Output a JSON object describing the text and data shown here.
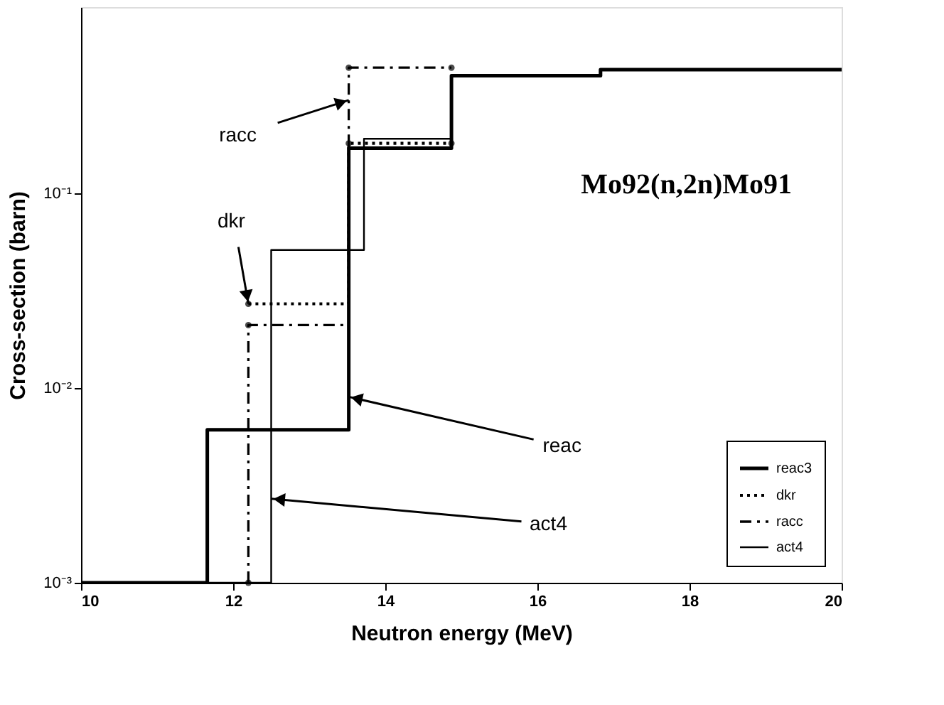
{
  "chart_data": {
    "type": "step",
    "title": "Mo92(n,2n)Mo91",
    "xlabel": "Neutron  energy  (MeV)",
    "ylabel": "Cross-section  (barn)",
    "xlim": [
      10,
      20
    ],
    "xticks": [
      10,
      12,
      14,
      16,
      18,
      20
    ],
    "ylim": [
      0.001,
      0.9
    ],
    "yticks": [
      {
        "value": 0.001,
        "label": "10⁻³"
      },
      {
        "value": 0.01,
        "label": "10⁻²"
      },
      {
        "value": 0.1,
        "label": "10⁻¹"
      }
    ],
    "log": true,
    "grid": false,
    "legend": "bottom right",
    "series": [
      {
        "name": "reac3",
        "color": "#000000",
        "line_style": "solid",
        "x": [
          10,
          11.66,
          13.52,
          14.87,
          16.83,
          20
        ],
        "values": [
          0.001,
          0.0061,
          0.17,
          0.4,
          0.43,
          0.43
        ]
      },
      {
        "name": "dkr",
        "color": "#000000",
        "line_style": "dotted",
        "marker": "circle",
        "x": [
          12.2,
          13.52,
          14.87
        ],
        "values": [
          0.027,
          0.18,
          0.18
        ]
      },
      {
        "name": "racc",
        "color": "#000000",
        "line_style": "dashed",
        "marker": "circle",
        "x": [
          12.2,
          12.2,
          13.52,
          14.87
        ],
        "values": [
          0.001,
          0.021,
          0.44,
          0.44
        ]
      },
      {
        "name": "act4",
        "color": "#000000",
        "line_style": "solid",
        "x": [
          10,
          12.5,
          13.72,
          14.87,
          16.83,
          20
        ],
        "values": [
          0.001,
          0.051,
          0.19,
          0.4,
          0.43,
          0.43
        ]
      }
    ],
    "annotations": [
      {
        "text": "racc",
        "x": 13.52,
        "y": 0.3
      },
      {
        "text": "dkr",
        "x": 12.2,
        "y": 0.027
      },
      {
        "text": "reac",
        "x": 13.52,
        "y": 0.009
      },
      {
        "text": "act4",
        "x": 12.5,
        "y": 0.0027
      }
    ]
  }
}
